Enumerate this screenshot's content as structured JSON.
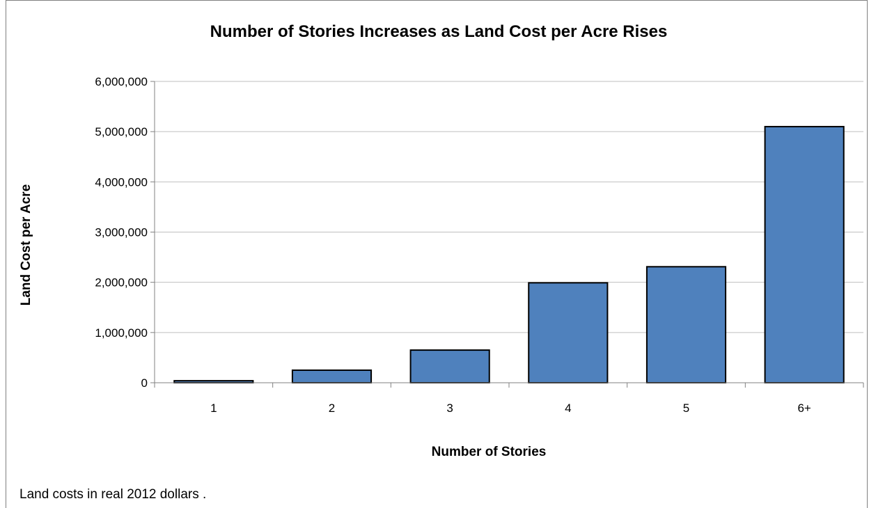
{
  "chart_data": {
    "type": "bar",
    "title": "Number of Stories Increases as Land Cost per Acre Rises",
    "xlabel": "Number of Stories",
    "ylabel": "Land Cost per Acre",
    "categories": [
      "1",
      "2",
      "3",
      "4",
      "5",
      "6+"
    ],
    "values": [
      40000,
      250000,
      650000,
      1990000,
      2310000,
      5100000
    ],
    "ylim": [
      0,
      6000000
    ],
    "yticks": [
      0,
      1000000,
      2000000,
      3000000,
      4000000,
      5000000,
      6000000
    ],
    "ytick_labels": [
      "0",
      "1,000,000",
      "2,000,000",
      "3,000,000",
      "4,000,000",
      "5,000,000",
      "6,000,000"
    ],
    "grid": true,
    "legend": "none",
    "bar_color": "#4f81bd",
    "bar_edge_color": "#000000",
    "gridline_color": "#bfbfbf"
  },
  "footnote": "Land costs in real 2012 dollars ."
}
